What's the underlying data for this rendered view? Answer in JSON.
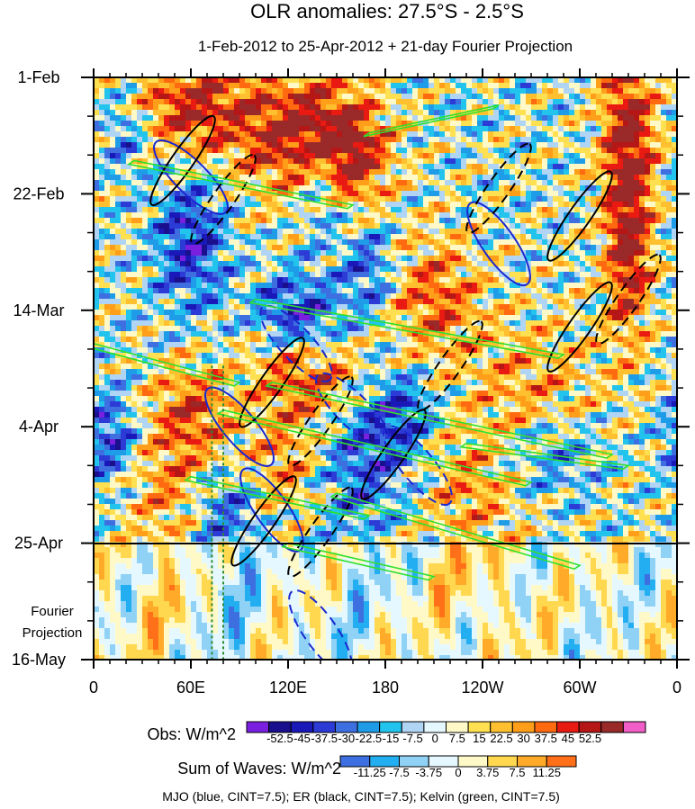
{
  "chart_data": {
    "type": "heatmap",
    "title": "OLR anomalies: 27.5°S - 2.5°S",
    "subtitle": "1-Feb-2012 to 25-Apr-2012 + 21-day Fourier Projection",
    "xlabel": "",
    "ylabel": "",
    "x_ticks": [
      "0",
      "60E",
      "120E",
      "180",
      "120W",
      "60W",
      "0"
    ],
    "x_range_deg_east": [
      0,
      360
    ],
    "y_ticks": [
      "1-Feb",
      "22-Feb",
      "14-Mar",
      "4-Apr",
      "25-Apr",
      "16-May"
    ],
    "y_range_days_from_1feb": [
      0,
      105
    ],
    "observation_end_day": 84,
    "projection_label_line1": "Fourier",
    "projection_label_line2": "Projection",
    "mjo_marker_longitudes": [
      73,
      80
    ],
    "obs_colorbar": {
      "label": "Obs: W/m^2",
      "levels": [
        "-52.5",
        "-45",
        "-37.5",
        "-30",
        "-22.5",
        "-15",
        "-7.5",
        "0",
        "7.5",
        "15",
        "22.5",
        "30",
        "37.5",
        "45",
        "52.5"
      ],
      "colors": [
        "#7a1fe0",
        "#1a0f8c",
        "#1a18b8",
        "#2c3ad6",
        "#3e6fe0",
        "#1e9ce8",
        "#22c4ee",
        "#b0d4f4",
        "#e6f8ff",
        "#fff9c8",
        "#ffe050",
        "#ffc030",
        "#ff9e18",
        "#ff6a10",
        "#e81a12",
        "#b51616",
        "#9a2a2a",
        "#f25ec8"
      ]
    },
    "waves_colorbar": {
      "label": "Sum of Waves: W/m^2",
      "levels": [
        "-11.25",
        "-7.5",
        "-3.75",
        "0",
        "3.75",
        "7.5",
        "11.25"
      ],
      "colors": [
        "#3e6fe0",
        "#22aef0",
        "#8fd2f6",
        "#e6f8ff",
        "#fff9c8",
        "#ffd850",
        "#ffaa28",
        "#ff7018"
      ]
    },
    "contour_legend": "MJO (blue, CINT=7.5); ER (black, CINT=7.5); Kelvin (green, CINT=7.5)",
    "series": [
      {
        "name": "MJO",
        "color": "#1a28d0",
        "cint": 7.5
      },
      {
        "name": "ER",
        "color": "#000000",
        "cint": 7.5
      },
      {
        "name": "Kelvin",
        "color": "#2ee02e",
        "cint": 7.5
      }
    ]
  }
}
